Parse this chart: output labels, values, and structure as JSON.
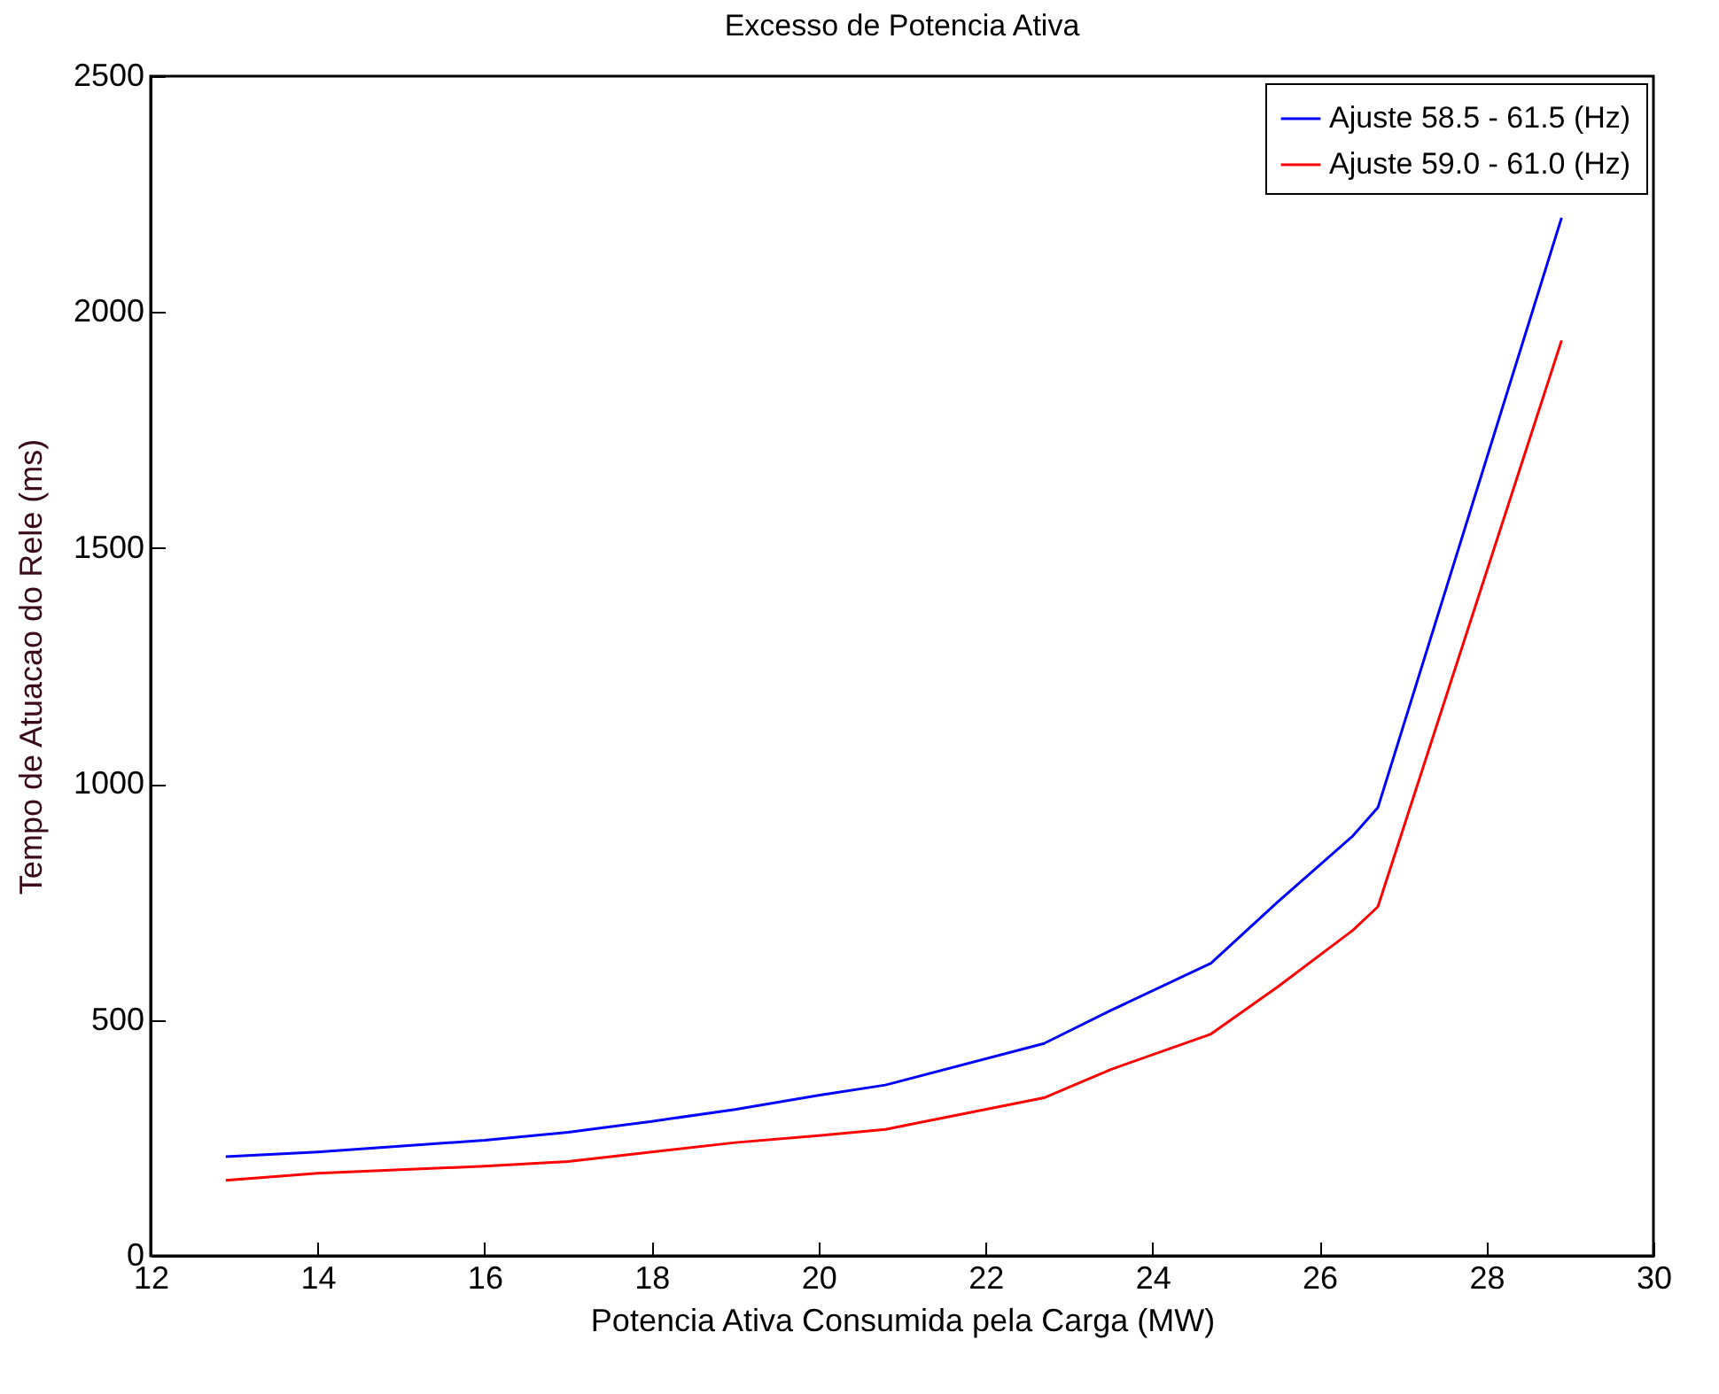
{
  "chart_data": {
    "type": "line",
    "title": "Excesso de Potencia Ativa",
    "xlabel": "Potencia Ativa Consumida pela Carga (MW)",
    "ylabel": "Tempo de Atuacao do Rele (ms)",
    "xlim": [
      12,
      30
    ],
    "xticks": [
      12,
      14,
      16,
      18,
      20,
      22,
      24,
      26,
      28,
      30
    ],
    "ylim": [
      0,
      2500
    ],
    "yticks": [
      0,
      500,
      1000,
      1500,
      2000,
      2500
    ],
    "grid": false,
    "legend": "top right",
    "line_style": "solid",
    "marker": "none",
    "series": [
      {
        "name": "Ajuste 58.5 - 61.5 (Hz)",
        "color": "#0000ff",
        "x": [
          12.9,
          14,
          16,
          17,
          18,
          19,
          20,
          20.8,
          22.7,
          23.5,
          24.7,
          25.5,
          26.4,
          26.7,
          28.9
        ],
        "values": [
          210,
          220,
          245,
          262,
          285,
          310,
          340,
          362,
          450,
          520,
          620,
          750,
          890,
          950,
          2200
        ]
      },
      {
        "name": "Ajuste 59.0 - 61.0 (Hz)",
        "color": "#ff0000",
        "x": [
          12.9,
          14,
          16,
          17,
          18,
          19,
          20,
          20.8,
          22.7,
          23.5,
          24.7,
          25.5,
          26.4,
          26.7,
          28.9
        ],
        "values": [
          160,
          175,
          190,
          200,
          220,
          240,
          255,
          268,
          335,
          395,
          470,
          570,
          690,
          740,
          1940
        ]
      }
    ]
  }
}
